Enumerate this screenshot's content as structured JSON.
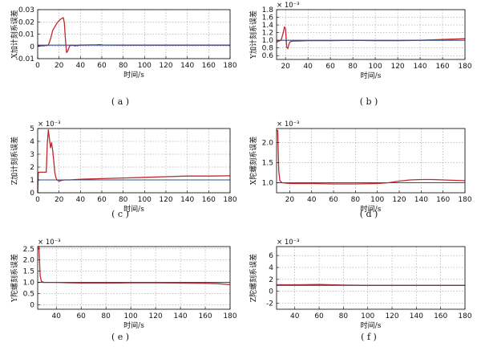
{
  "series_colors": {
    "estimate": "#c0282d",
    "true": "#2e4f8c"
  },
  "chart_data": [
    {
      "id": "a",
      "type": "line",
      "caption": "( a )",
      "xlabel": "时间/s",
      "ylabel": "X加计刻系误差",
      "xlim": [
        0,
        180
      ],
      "ylim": [
        -0.01,
        0.03
      ],
      "xticks": [
        0,
        20,
        40,
        60,
        80,
        100,
        120,
        140,
        160,
        180
      ],
      "yticks": [
        -0.01,
        0,
        0.01,
        0.02,
        0.03
      ],
      "ytick_labels": [
        "-0.01",
        "0",
        "0.01",
        "0.02",
        "0.03"
      ],
      "exponent_label": "",
      "grid": true,
      "series": [
        {
          "role": "estimate",
          "x": [
            0,
            5,
            10,
            12,
            14,
            16,
            18,
            20,
            22,
            24,
            25,
            26,
            27,
            28,
            30,
            32,
            35,
            40,
            50,
            55,
            58,
            60,
            80,
            120,
            180
          ],
          "y": [
            0.0005,
            0.0005,
            0.001,
            0.006,
            0.013,
            0.016,
            0.019,
            0.021,
            0.0225,
            0.0235,
            0.019,
            0.005,
            -0.005,
            -0.004,
            0.0005,
            0.001,
            0.0005,
            0.001,
            0.0012,
            0.0012,
            0.0015,
            0.0012,
            0.001,
            0.001,
            0.001
          ]
        },
        {
          "role": "true",
          "x": [
            0,
            180
          ],
          "y": [
            0.001,
            0.001
          ]
        }
      ]
    },
    {
      "id": "b",
      "type": "line",
      "caption": "( b )",
      "xlabel": "时间/s",
      "ylabel": "Y加计刻系误差",
      "xlim": [
        12,
        180
      ],
      "ylim": [
        0.5,
        1.8
      ],
      "xticks": [
        20,
        40,
        60,
        80,
        100,
        120,
        140,
        160,
        180
      ],
      "yticks": [
        0.6,
        0.8,
        1.0,
        1.2,
        1.4,
        1.6,
        1.8
      ],
      "ytick_labels": [
        "0.6",
        "0.8",
        "1.0",
        "1.2",
        "1.4",
        "1.6",
        "1.8"
      ],
      "exponent_label": "× 10⁻³",
      "grid": true,
      "series": [
        {
          "role": "estimate",
          "x": [
            12,
            14,
            16,
            17,
            18,
            19,
            20,
            21,
            22,
            23,
            24,
            26,
            30,
            40,
            60,
            80,
            100,
            120,
            140,
            150,
            160,
            170,
            180
          ],
          "y": [
            0.95,
            0.98,
            1.0,
            1.1,
            1.2,
            1.35,
            1.3,
            0.82,
            0.78,
            0.9,
            0.96,
            0.98,
            0.98,
            0.99,
            0.99,
            1.0,
            0.99,
            0.99,
            1.0,
            1.01,
            1.02,
            1.03,
            1.04
          ]
        },
        {
          "role": "true",
          "x": [
            12,
            180
          ],
          "y": [
            1.0,
            1.0
          ]
        }
      ]
    },
    {
      "id": "c",
      "type": "line",
      "caption": "( c )",
      "xlabel": "时间/s",
      "ylabel": "Z加计刻系误差",
      "xlim": [
        0,
        180
      ],
      "ylim": [
        0,
        5
      ],
      "xticks": [
        0,
        20,
        40,
        60,
        80,
        100,
        120,
        140,
        160,
        180
      ],
      "yticks": [
        0,
        1,
        2,
        3,
        4,
        5
      ],
      "ytick_labels": [
        "0",
        "1",
        "2",
        "3",
        "4",
        "5"
      ],
      "exponent_label": "× 10⁻³",
      "grid": true,
      "series": [
        {
          "role": "estimate",
          "x": [
            0,
            0.5,
            1,
            6,
            8,
            9,
            10,
            11,
            12,
            13,
            14,
            15,
            16,
            17,
            18,
            20,
            22,
            25,
            30,
            40,
            60,
            80,
            100,
            120,
            140,
            160,
            180
          ],
          "y": [
            0,
            1.5,
            1.6,
            1.6,
            1.6,
            3.8,
            4.9,
            4.2,
            3.5,
            3.9,
            3.3,
            2.5,
            1.6,
            1.2,
            1.0,
            0.9,
            0.95,
            1.0,
            1.0,
            1.05,
            1.1,
            1.15,
            1.2,
            1.25,
            1.3,
            1.3,
            1.32
          ]
        },
        {
          "role": "true",
          "x": [
            0,
            180
          ],
          "y": [
            1.0,
            1.0
          ]
        }
      ]
    },
    {
      "id": "d",
      "type": "line",
      "caption": "( d )",
      "xlabel": "时间/s",
      "ylabel": "X陀螺刻系误差",
      "xlim": [
        8,
        180
      ],
      "ylim": [
        0.75,
        2.35
      ],
      "xticks": [
        20,
        40,
        60,
        80,
        100,
        120,
        140,
        160,
        180
      ],
      "yticks": [
        1.0,
        1.5,
        2.0
      ],
      "ytick_labels": [
        "1.0",
        "1.5",
        "2.0"
      ],
      "exponent_label": "× 10⁻³",
      "grid": true,
      "series": [
        {
          "role": "estimate",
          "x": [
            8,
            9,
            10,
            11,
            13,
            20,
            40,
            60,
            80,
            100,
            110,
            120,
            130,
            140,
            150,
            160,
            170,
            180
          ],
          "y": [
            2.3,
            2.3,
            1.3,
            1.05,
            1.0,
            0.98,
            0.98,
            0.97,
            0.97,
            0.98,
            1.0,
            1.04,
            1.07,
            1.08,
            1.08,
            1.07,
            1.06,
            1.05
          ]
        },
        {
          "role": "true",
          "x": [
            8,
            180
          ],
          "y": [
            1.0,
            1.0
          ]
        }
      ]
    },
    {
      "id": "e",
      "type": "line",
      "caption": "( e )",
      "xlabel": "时间/s",
      "ylabel": "Y陀螺刻系误差",
      "xlim": [
        25,
        180
      ],
      "ylim": [
        -0.2,
        2.6
      ],
      "xticks": [
        40,
        60,
        80,
        100,
        120,
        140,
        160,
        180
      ],
      "yticks": [
        0,
        0.5,
        1.0,
        1.5,
        2.0,
        2.5
      ],
      "ytick_labels": [
        "0",
        "0.5",
        "1.0",
        "1.5",
        "2.0",
        "2.5"
      ],
      "exponent_label": "× 10⁻³",
      "grid": true,
      "series": [
        {
          "role": "estimate",
          "x": [
            25,
            26,
            27,
            28,
            30,
            40,
            50,
            60,
            70,
            80,
            90,
            100,
            120,
            140,
            160,
            170,
            180
          ],
          "y": [
            2.6,
            2.6,
            1.3,
            1.05,
            1.0,
            1.0,
            0.98,
            0.97,
            0.97,
            0.97,
            0.97,
            0.98,
            0.98,
            0.97,
            0.96,
            0.94,
            0.9
          ]
        },
        {
          "role": "true",
          "x": [
            25,
            180
          ],
          "y": [
            1.0,
            1.0
          ]
        }
      ]
    },
    {
      "id": "f",
      "type": "line",
      "caption": "( f )",
      "xlabel": "时间/s",
      "ylabel": "Z陀螺刻系误差",
      "xlim": [
        25,
        180
      ],
      "ylim": [
        -3,
        7.5
      ],
      "xticks": [
        40,
        60,
        80,
        100,
        120,
        140,
        160,
        180
      ],
      "yticks": [
        -2,
        0,
        2,
        4,
        6
      ],
      "ytick_labels": [
        "-2",
        "0",
        "2",
        "4",
        "6"
      ],
      "exponent_label": "× 10⁻³",
      "grid": true,
      "series": [
        {
          "role": "estimate",
          "x": [
            25,
            27,
            30,
            40,
            60,
            70,
            80,
            100,
            120,
            140,
            160,
            180
          ],
          "y": [
            1.1,
            1.1,
            1.1,
            1.1,
            1.15,
            1.1,
            1.05,
            1.0,
            1.0,
            1.0,
            1.0,
            1.0
          ]
        },
        {
          "role": "true",
          "x": [
            25,
            180
          ],
          "y": [
            1.0,
            1.0
          ]
        }
      ]
    }
  ]
}
